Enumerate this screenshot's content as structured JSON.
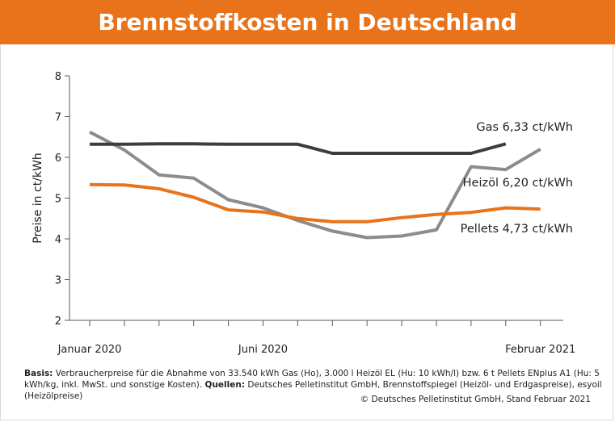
{
  "chart_data": {
    "type": "line",
    "title": "Brennstoffkosten in Deutschland",
    "ylabel": "Preise in ct/kWh",
    "xlabel": "",
    "ylim": [
      2,
      8
    ],
    "yticks": [
      "2",
      "3",
      "4",
      "5",
      "6",
      "7",
      "8"
    ],
    "x_tick_labels": [
      {
        "label": "Januar 2020",
        "index": 0
      },
      {
        "label": "Juni 2020",
        "index": 5
      },
      {
        "label": "Februar 2021",
        "index": 13
      }
    ],
    "x_count": 14,
    "grid": false,
    "series": [
      {
        "name": "Gas 6,33 ct/kWh",
        "color": "#3d3d3d",
        "x": [
          0,
          1,
          2,
          3,
          4,
          5,
          6,
          7,
          8,
          9,
          10,
          11,
          12
        ],
        "values": [
          6.32,
          6.32,
          6.33,
          6.33,
          6.32,
          6.32,
          6.32,
          6.1,
          6.1,
          6.1,
          6.1,
          6.1,
          6.33
        ]
      },
      {
        "name": "Heizöl 6,20 ct/kWh",
        "color": "#8c8c8c",
        "x": [
          0,
          1,
          2,
          3,
          4,
          5,
          6,
          7,
          8,
          9,
          10,
          11,
          12,
          13
        ],
        "values": [
          6.62,
          6.18,
          5.57,
          5.49,
          4.96,
          4.76,
          4.45,
          4.19,
          4.03,
          4.07,
          4.22,
          5.77,
          5.7,
          6.2
        ]
      },
      {
        "name": "Pellets 4,73 ct/kWh",
        "color": "#e8731a",
        "x": [
          0,
          1,
          2,
          3,
          4,
          5,
          6,
          7,
          8,
          9,
          10,
          11,
          12,
          13
        ],
        "values": [
          5.33,
          5.32,
          5.23,
          5.02,
          4.71,
          4.66,
          4.5,
          4.42,
          4.42,
          4.52,
          4.6,
          4.65,
          4.76,
          4.73
        ]
      }
    ]
  },
  "footer": {
    "basis_label": "Basis:",
    "basis_text": " Verbraucherpreise für die Abnahme von 33.540 kWh Gas (Ho), 3.000 l Heizöl EL (Hu: 10 kWh/l) bzw. 6 t Pellets ENplus A1 (Hu: 5 kWh/kg, inkl. MwSt. und sonstige Kosten).",
    "sources_label": "Quellen:",
    "sources_text": " Deutsches Pelletinstitut GmbH, Brennstoffspiegel (Heizöl- und Erdgaspreise), esyoil (Heizölpreise)",
    "copyright": "© Deutsches Pelletinstitut GmbH, Stand Februar 2021"
  }
}
